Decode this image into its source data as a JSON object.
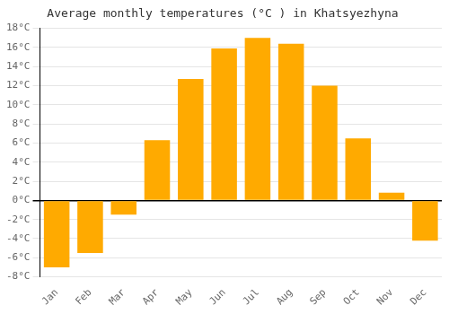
{
  "chart_data": {
    "type": "bar",
    "title": "Average monthly temperatures (°C ) in Khatsyezhyna",
    "categories": [
      "Jan",
      "Feb",
      "Mar",
      "Apr",
      "May",
      "Jun",
      "Jul",
      "Aug",
      "Sep",
      "Oct",
      "Nov",
      "Dec"
    ],
    "values": [
      -7.0,
      -5.5,
      -1.5,
      6.3,
      12.7,
      15.9,
      17.0,
      16.4,
      12.0,
      6.5,
      0.8,
      -4.2
    ],
    "color": "#FFAA00",
    "ylim": [
      -8,
      18
    ],
    "yticks": [
      {
        "value": -8,
        "label": "-8°C"
      },
      {
        "value": -6,
        "label": "-6°C"
      },
      {
        "value": -4,
        "label": "-4°C"
      },
      {
        "value": -2,
        "label": "-2°C"
      },
      {
        "value": 0,
        "label": "0°C"
      },
      {
        "value": 2,
        "label": "2°C"
      },
      {
        "value": 4,
        "label": "4°C"
      },
      {
        "value": 6,
        "label": "6°C"
      },
      {
        "value": 8,
        "label": "8°C"
      },
      {
        "value": 10,
        "label": "10°C"
      },
      {
        "value": 12,
        "label": "12°C"
      },
      {
        "value": 14,
        "label": "14°C"
      },
      {
        "value": 16,
        "label": "16°C"
      },
      {
        "value": 18,
        "label": "18°C"
      }
    ],
    "grid": true
  }
}
